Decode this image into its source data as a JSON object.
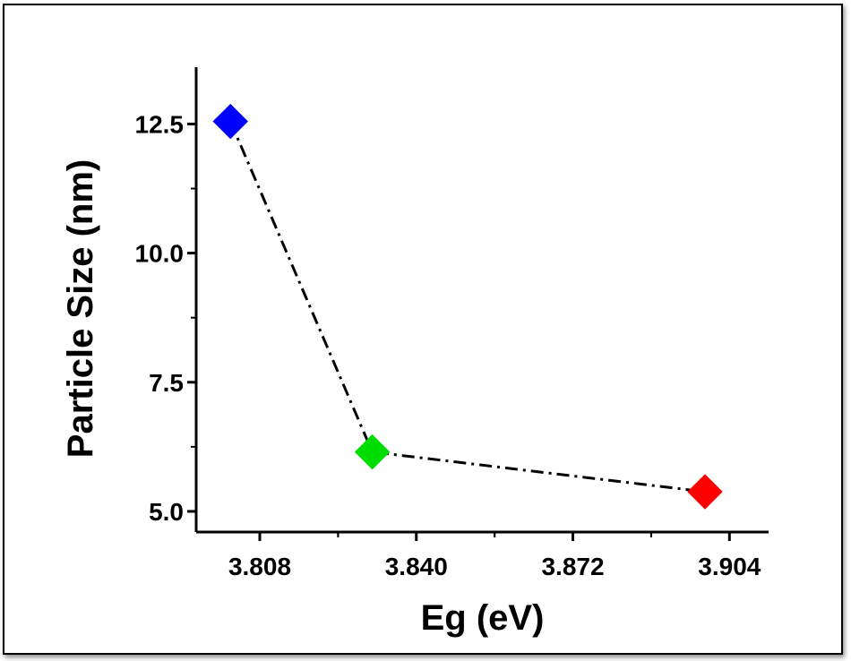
{
  "chart_data": {
    "type": "scatter",
    "title": "",
    "xlabel": "Eg (eV)",
    "ylabel": "Particle Size (nm)",
    "xlim": [
      3.795,
      3.912
    ],
    "ylim": [
      4.6,
      13.6
    ],
    "x_ticks": [
      "3.808",
      "3.840",
      "3.872",
      "3.904"
    ],
    "y_ticks": [
      "5.0",
      "7.5",
      "10.0",
      "12.5"
    ],
    "grid": false,
    "line_style": "dash-dot",
    "line_color": "#000000",
    "points": [
      {
        "x": 3.802,
        "y": 12.55,
        "color": "#0000ff"
      },
      {
        "x": 3.831,
        "y": 6.15,
        "color": "#00dd00"
      },
      {
        "x": 3.899,
        "y": 5.38,
        "color": "#ff0000"
      }
    ]
  }
}
